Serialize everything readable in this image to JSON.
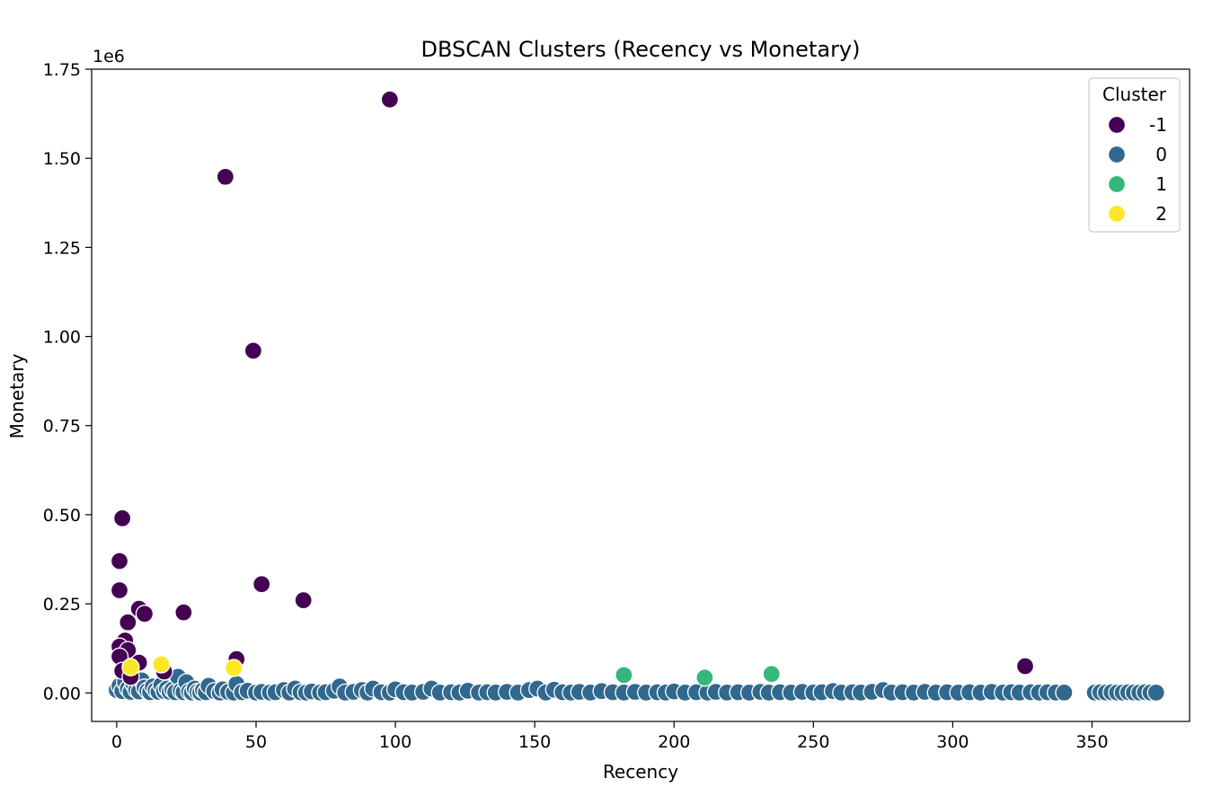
{
  "chart_data": {
    "type": "scatter",
    "title": "DBSCAN Clusters (Recency vs Monetary)",
    "xlabel": "Recency",
    "ylabel": "Monetary",
    "y_offset_text": "1e6",
    "xlim": [
      -9,
      385
    ],
    "ylim": [
      -80000,
      1750000
    ],
    "x_ticks": [
      0,
      50,
      100,
      150,
      200,
      250,
      300,
      350
    ],
    "x_tick_labels": [
      "0",
      "50",
      "100",
      "150",
      "200",
      "250",
      "300",
      "350"
    ],
    "y_ticks": [
      0,
      250000,
      500000,
      750000,
      1000000,
      1250000,
      1500000,
      1750000
    ],
    "y_tick_labels": [
      "0.00",
      "0.25",
      "0.50",
      "0.75",
      "1.00",
      "1.25",
      "1.50",
      "1.75"
    ],
    "grid": false,
    "legend": {
      "title": "Cluster",
      "placement": "top-right",
      "entries": [
        {
          "label": "-1",
          "color": "#440154"
        },
        {
          "label": "0",
          "color": "#31688e"
        },
        {
          "label": "1",
          "color": "#35b779"
        },
        {
          "label": "2",
          "color": "#fde725"
        }
      ]
    },
    "series": [
      {
        "name": "-1",
        "color": "#440154",
        "points": [
          {
            "x": 98,
            "y": 1665000
          },
          {
            "x": 39,
            "y": 1448000
          },
          {
            "x": 49,
            "y": 960000
          },
          {
            "x": 2,
            "y": 490000
          },
          {
            "x": 1,
            "y": 370000
          },
          {
            "x": 52,
            "y": 305000
          },
          {
            "x": 1,
            "y": 288000
          },
          {
            "x": 67,
            "y": 260000
          },
          {
            "x": 8,
            "y": 236000
          },
          {
            "x": 10,
            "y": 222000
          },
          {
            "x": 24,
            "y": 226000
          },
          {
            "x": 4,
            "y": 198000
          },
          {
            "x": 3,
            "y": 147000
          },
          {
            "x": 1,
            "y": 130000
          },
          {
            "x": 4,
            "y": 120000
          },
          {
            "x": 1,
            "y": 102000
          },
          {
            "x": 43,
            "y": 95000
          },
          {
            "x": 8,
            "y": 85000
          },
          {
            "x": 326,
            "y": 75000
          },
          {
            "x": 2,
            "y": 62000
          },
          {
            "x": 17,
            "y": 60000
          },
          {
            "x": 5,
            "y": 45000
          }
        ]
      },
      {
        "name": "0",
        "color": "#31688e",
        "points": [
          {
            "x": 0,
            "y": 8000
          },
          {
            "x": 1,
            "y": 20000
          },
          {
            "x": 2,
            "y": 5000
          },
          {
            "x": 3,
            "y": 30000
          },
          {
            "x": 4,
            "y": 12000
          },
          {
            "x": 5,
            "y": 3000
          },
          {
            "x": 6,
            "y": 25000
          },
          {
            "x": 7,
            "y": 9000
          },
          {
            "x": 8,
            "y": 4000
          },
          {
            "x": 9,
            "y": 35000
          },
          {
            "x": 10,
            "y": 15000
          },
          {
            "x": 11,
            "y": 6000
          },
          {
            "x": 12,
            "y": 2000
          },
          {
            "x": 13,
            "y": 18000
          },
          {
            "x": 14,
            "y": 8000
          },
          {
            "x": 15,
            "y": 3000
          },
          {
            "x": 16,
            "y": 22000
          },
          {
            "x": 17,
            "y": 5000
          },
          {
            "x": 18,
            "y": 12000
          },
          {
            "x": 19,
            "y": 3000
          },
          {
            "x": 20,
            "y": 9000
          },
          {
            "x": 21,
            "y": 2000
          },
          {
            "x": 22,
            "y": 45000
          },
          {
            "x": 23,
            "y": 6000
          },
          {
            "x": 24,
            "y": 2000
          },
          {
            "x": 25,
            "y": 30000
          },
          {
            "x": 26,
            "y": 4000
          },
          {
            "x": 27,
            "y": 1000
          },
          {
            "x": 28,
            "y": 12000
          },
          {
            "x": 29,
            "y": 3000
          },
          {
            "x": 30,
            "y": 1000
          },
          {
            "x": 31,
            "y": 8000
          },
          {
            "x": 32,
            "y": 2000
          },
          {
            "x": 33,
            "y": 20000
          },
          {
            "x": 35,
            "y": 5000
          },
          {
            "x": 37,
            "y": 1000
          },
          {
            "x": 38,
            "y": 10000
          },
          {
            "x": 40,
            "y": 3000
          },
          {
            "x": 42,
            "y": 1000
          },
          {
            "x": 43,
            "y": 25000
          },
          {
            "x": 45,
            "y": 2000
          },
          {
            "x": 47,
            "y": 6000
          },
          {
            "x": 50,
            "y": 1000
          },
          {
            "x": 52,
            "y": 3000
          },
          {
            "x": 55,
            "y": 1000
          },
          {
            "x": 57,
            "y": 2000
          },
          {
            "x": 60,
            "y": 8000
          },
          {
            "x": 62,
            "y": 1000
          },
          {
            "x": 64,
            "y": 12000
          },
          {
            "x": 66,
            "y": 2000
          },
          {
            "x": 68,
            "y": 1000
          },
          {
            "x": 70,
            "y": 4000
          },
          {
            "x": 73,
            "y": 1000
          },
          {
            "x": 75,
            "y": 2000
          },
          {
            "x": 78,
            "y": 6000
          },
          {
            "x": 80,
            "y": 18000
          },
          {
            "x": 82,
            "y": 1000
          },
          {
            "x": 85,
            "y": 3000
          },
          {
            "x": 88,
            "y": 8000
          },
          {
            "x": 90,
            "y": 1000
          },
          {
            "x": 92,
            "y": 12000
          },
          {
            "x": 95,
            "y": 2000
          },
          {
            "x": 98,
            "y": 1000
          },
          {
            "x": 100,
            "y": 10000
          },
          {
            "x": 103,
            "y": 2000
          },
          {
            "x": 106,
            "y": 1000
          },
          {
            "x": 110,
            "y": 3000
          },
          {
            "x": 113,
            "y": 12000
          },
          {
            "x": 116,
            "y": 1000
          },
          {
            "x": 120,
            "y": 2000
          },
          {
            "x": 123,
            "y": 1000
          },
          {
            "x": 126,
            "y": 6000
          },
          {
            "x": 130,
            "y": 1000
          },
          {
            "x": 133,
            "y": 2000
          },
          {
            "x": 136,
            "y": 1000
          },
          {
            "x": 140,
            "y": 3000
          },
          {
            "x": 144,
            "y": 1000
          },
          {
            "x": 148,
            "y": 8000
          },
          {
            "x": 151,
            "y": 12000
          },
          {
            "x": 154,
            "y": 1000
          },
          {
            "x": 157,
            "y": 9000
          },
          {
            "x": 160,
            "y": 2000
          },
          {
            "x": 163,
            "y": 1000
          },
          {
            "x": 166,
            "y": 3000
          },
          {
            "x": 170,
            "y": 1000
          },
          {
            "x": 174,
            "y": 5000
          },
          {
            "x": 178,
            "y": 2000
          },
          {
            "x": 182,
            "y": 1000
          },
          {
            "x": 186,
            "y": 3000
          },
          {
            "x": 190,
            "y": 1000
          },
          {
            "x": 194,
            "y": 2000
          },
          {
            "x": 197,
            "y": 1000
          },
          {
            "x": 200,
            "y": 4000
          },
          {
            "x": 204,
            "y": 1000
          },
          {
            "x": 208,
            "y": 2000
          },
          {
            "x": 212,
            "y": 1000
          },
          {
            "x": 215,
            "y": 3000
          },
          {
            "x": 219,
            "y": 1000
          },
          {
            "x": 223,
            "y": 2000
          },
          {
            "x": 227,
            "y": 1000
          },
          {
            "x": 231,
            "y": 3000
          },
          {
            "x": 234,
            "y": 1000
          },
          {
            "x": 238,
            "y": 2000
          },
          {
            "x": 242,
            "y": 1000
          },
          {
            "x": 246,
            "y": 3000
          },
          {
            "x": 250,
            "y": 1000
          },
          {
            "x": 253,
            "y": 2000
          },
          {
            "x": 257,
            "y": 5000
          },
          {
            "x": 260,
            "y": 1000
          },
          {
            "x": 264,
            "y": 2000
          },
          {
            "x": 267,
            "y": 1000
          },
          {
            "x": 271,
            "y": 3000
          },
          {
            "x": 275,
            "y": 8000
          },
          {
            "x": 278,
            "y": 1000
          },
          {
            "x": 282,
            "y": 2000
          },
          {
            "x": 286,
            "y": 1000
          },
          {
            "x": 290,
            "y": 3000
          },
          {
            "x": 294,
            "y": 1000
          },
          {
            "x": 298,
            "y": 2000
          },
          {
            "x": 302,
            "y": 1000
          },
          {
            "x": 306,
            "y": 2000
          },
          {
            "x": 310,
            "y": 1000
          },
          {
            "x": 314,
            "y": 3000
          },
          {
            "x": 318,
            "y": 1000
          },
          {
            "x": 321,
            "y": 2000
          },
          {
            "x": 324,
            "y": 1000
          },
          {
            "x": 328,
            "y": 2000
          },
          {
            "x": 331,
            "y": 1000
          },
          {
            "x": 334,
            "y": 2000
          },
          {
            "x": 337,
            "y": 1000
          },
          {
            "x": 340,
            "y": 1000
          },
          {
            "x": 351,
            "y": 1000
          },
          {
            "x": 353,
            "y": 2000
          },
          {
            "x": 355,
            "y": 1000
          },
          {
            "x": 357,
            "y": 2000
          },
          {
            "x": 359,
            "y": 1000
          },
          {
            "x": 361,
            "y": 1000
          },
          {
            "x": 363,
            "y": 2000
          },
          {
            "x": 365,
            "y": 1000
          },
          {
            "x": 367,
            "y": 1000
          },
          {
            "x": 369,
            "y": 2000
          },
          {
            "x": 371,
            "y": 1000
          },
          {
            "x": 373,
            "y": 1000
          }
        ]
      },
      {
        "name": "1",
        "color": "#35b779",
        "points": [
          {
            "x": 182,
            "y": 50000
          },
          {
            "x": 211,
            "y": 43000
          },
          {
            "x": 235,
            "y": 53000
          }
        ]
      },
      {
        "name": "2",
        "color": "#fde725",
        "points": [
          {
            "x": 16,
            "y": 80000
          },
          {
            "x": 42,
            "y": 70000
          },
          {
            "x": 5,
            "y": 72000
          }
        ]
      }
    ]
  }
}
